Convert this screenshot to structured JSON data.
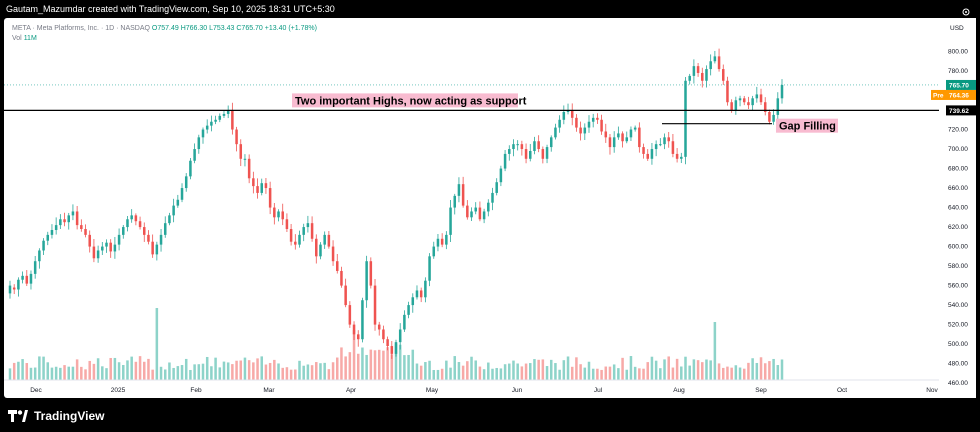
{
  "caption": "Gautam_Mazumdar created with TradingView.com, Sep 10, 2025 18:31 UTC+5:30",
  "legend": {
    "symbol": "META · Meta Platforms, Inc. · 1D · NASDAQ",
    "ohlc": "O757.49 H766.30 L753.43 C765.70 +13.40 (+1.78%)",
    "volume_label": "Vol",
    "volume_value": "11M"
  },
  "axis": {
    "currency": "USD",
    "ticks": [
      "800.00",
      "780.00",
      "760.00",
      "740.00",
      "720.00",
      "700.00",
      "680.00",
      "660.00",
      "640.00",
      "620.00",
      "600.00",
      "580.00",
      "560.00",
      "540.00",
      "520.00",
      "500.00",
      "480.00",
      "460.00"
    ],
    "x_labels": [
      "Dec",
      "2025",
      "Feb",
      "Mar",
      "Apr",
      "May",
      "Jun",
      "Jul",
      "Aug",
      "Sep",
      "Oct",
      "Nov"
    ]
  },
  "price_badges": {
    "last": "765.70",
    "pre_label": "Pre",
    "pre_value": "764.36",
    "line": "739.62"
  },
  "annotations": {
    "support": "Two important Highs, now acting as support",
    "gap": "Gap Filling"
  },
  "colors": {
    "up": "#26a69a",
    "down": "#ef5350",
    "vol_up": "#8dd3c9",
    "vol_down": "#f7a9a7",
    "badge_last": "#089981",
    "badge_pre": "#ff9800",
    "annotation_bg": "#f8bbd0"
  },
  "brand": "TradingView",
  "chart_data": {
    "type": "candlestick",
    "y_unit": "USD",
    "ylim": [
      455,
      820
    ],
    "candles": [
      [
        552,
        560
      ],
      [
        558,
        556
      ],
      [
        556,
        566
      ],
      [
        566,
        570
      ],
      [
        570,
        562
      ],
      [
        562,
        572
      ],
      [
        572,
        585
      ],
      [
        585,
        596
      ],
      [
        596,
        606
      ],
      [
        606,
        612
      ],
      [
        612,
        617
      ],
      [
        617,
        622
      ],
      [
        622,
        628
      ],
      [
        628,
        625
      ],
      [
        625,
        632
      ],
      [
        632,
        636
      ],
      [
        636,
        622
      ],
      [
        622,
        618
      ],
      [
        618,
        612
      ],
      [
        612,
        600
      ],
      [
        600,
        588
      ],
      [
        588,
        596
      ],
      [
        596,
        600
      ],
      [
        600,
        604
      ],
      [
        604,
        595
      ],
      [
        595,
        602
      ],
      [
        602,
        612
      ],
      [
        612,
        620
      ],
      [
        620,
        628
      ],
      [
        628,
        632
      ],
      [
        632,
        626
      ],
      [
        626,
        620
      ],
      [
        620,
        612
      ],
      [
        612,
        605
      ],
      [
        605,
        592
      ],
      [
        592,
        602
      ],
      [
        602,
        612
      ],
      [
        612,
        624
      ],
      [
        624,
        632
      ],
      [
        632,
        642
      ],
      [
        642,
        648
      ],
      [
        648,
        660
      ],
      [
        660,
        672
      ],
      [
        672,
        688
      ],
      [
        688,
        700
      ],
      [
        700,
        712
      ],
      [
        712,
        720
      ],
      [
        720,
        724
      ],
      [
        724,
        728
      ],
      [
        728,
        730
      ],
      [
        730,
        734
      ],
      [
        734,
        736
      ],
      [
        736,
        740
      ],
      [
        740,
        720
      ],
      [
        720,
        705
      ],
      [
        705,
        690
      ],
      [
        690,
        690
      ],
      [
        690,
        670
      ],
      [
        670,
        662
      ],
      [
        662,
        655
      ],
      [
        655,
        665
      ],
      [
        665,
        660
      ],
      [
        660,
        640
      ],
      [
        640,
        630
      ],
      [
        630,
        636
      ],
      [
        636,
        628
      ],
      [
        628,
        618
      ],
      [
        618,
        605
      ],
      [
        605,
        602
      ],
      [
        602,
        612
      ],
      [
        612,
        620
      ],
      [
        620,
        624
      ],
      [
        624,
        608
      ],
      [
        608,
        590
      ],
      [
        590,
        602
      ],
      [
        602,
        612
      ],
      [
        612,
        600
      ],
      [
        600,
        585
      ],
      [
        585,
        575
      ],
      [
        575,
        560
      ],
      [
        560,
        540
      ],
      [
        540,
        520
      ],
      [
        520,
        510
      ],
      [
        510,
        505
      ],
      [
        505,
        545
      ],
      [
        545,
        585
      ],
      [
        585,
        560
      ],
      [
        560,
        520
      ],
      [
        520,
        515
      ],
      [
        515,
        505
      ],
      [
        505,
        498
      ],
      [
        498,
        490
      ],
      [
        490,
        502
      ],
      [
        502,
        515
      ],
      [
        515,
        530
      ],
      [
        530,
        540
      ],
      [
        540,
        548
      ],
      [
        548,
        555
      ],
      [
        555,
        548
      ],
      [
        548,
        565
      ],
      [
        565,
        590
      ],
      [
        590,
        600
      ],
      [
        600,
        608
      ],
      [
        608,
        602
      ],
      [
        602,
        612
      ],
      [
        612,
        640
      ],
      [
        640,
        652
      ],
      [
        652,
        664
      ],
      [
        664,
        642
      ],
      [
        642,
        630
      ],
      [
        630,
        636
      ],
      [
        636,
        640
      ],
      [
        640,
        628
      ],
      [
        628,
        636
      ],
      [
        636,
        645
      ],
      [
        645,
        655
      ],
      [
        655,
        666
      ],
      [
        666,
        680
      ],
      [
        680,
        695
      ],
      [
        695,
        700
      ],
      [
        700,
        705
      ],
      [
        705,
        705
      ],
      [
        705,
        700
      ],
      [
        700,
        690
      ],
      [
        690,
        698
      ],
      [
        698,
        708
      ],
      [
        708,
        700
      ],
      [
        700,
        690
      ],
      [
        690,
        702
      ],
      [
        702,
        712
      ],
      [
        712,
        722
      ],
      [
        722,
        730
      ],
      [
        730,
        738
      ],
      [
        738,
        740
      ],
      [
        740,
        732
      ],
      [
        732,
        722
      ],
      [
        722,
        716
      ],
      [
        716,
        722
      ],
      [
        722,
        728
      ],
      [
        728,
        732
      ],
      [
        732,
        730
      ],
      [
        730,
        718
      ],
      [
        718,
        712
      ],
      [
        712,
        702
      ],
      [
        702,
        712
      ],
      [
        712,
        716
      ],
      [
        716,
        708
      ],
      [
        708,
        712
      ],
      [
        712,
        720
      ],
      [
        720,
        722
      ],
      [
        722,
        702
      ],
      [
        702,
        695
      ],
      [
        695,
        690
      ],
      [
        690,
        700
      ],
      [
        700,
        705
      ],
      [
        705,
        705
      ],
      [
        705,
        712
      ],
      [
        712,
        708
      ],
      [
        708,
        695
      ],
      [
        695,
        690
      ],
      [
        690,
        692
      ],
      [
        692,
        770
      ],
      [
        770,
        775
      ],
      [
        775,
        785
      ],
      [
        785,
        778
      ],
      [
        778,
        770
      ],
      [
        770,
        782
      ],
      [
        782,
        790
      ],
      [
        790,
        795
      ],
      [
        795,
        782
      ],
      [
        782,
        770
      ],
      [
        770,
        748
      ],
      [
        748,
        740
      ],
      [
        740,
        750
      ],
      [
        750,
        752
      ],
      [
        752,
        748
      ],
      [
        748,
        745
      ],
      [
        745,
        752
      ],
      [
        752,
        756
      ],
      [
        756,
        748
      ],
      [
        748,
        738
      ],
      [
        738,
        728
      ],
      [
        728,
        735
      ],
      [
        735,
        752
      ],
      [
        752,
        765.7
      ]
    ],
    "support_level": 739.62,
    "last_close": 765.7,
    "pre_market": 764.36
  }
}
